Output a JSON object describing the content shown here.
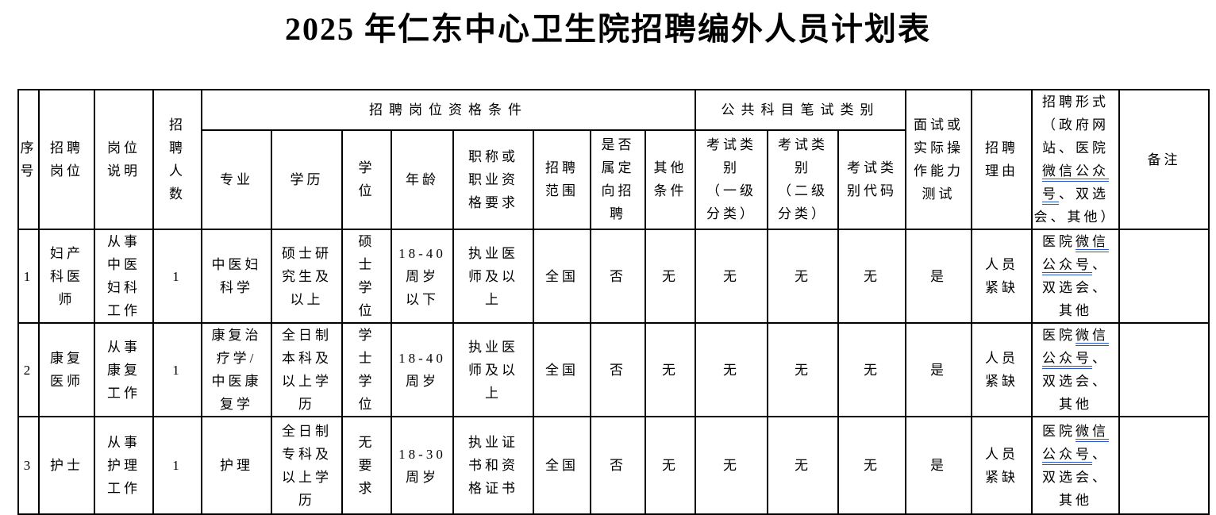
{
  "page": {
    "title": "2025 年仁东中心卫生院招聘编外人员计划表"
  },
  "colors": {
    "underline_blue": "#2456c9",
    "border": "#000000",
    "text": "#000000",
    "background": "#ffffff"
  },
  "table": {
    "groups": {
      "qualification": "招聘岗位资格条件",
      "written_test": "公共科目笔试类别"
    },
    "headers": {
      "seq": "序\n号",
      "position": "招聘\n岗位",
      "desc": "岗位\n说明",
      "count": "招\n聘\n人\n数",
      "major": "专业",
      "education": "学历",
      "degree": "学\n位",
      "age": "年龄",
      "cert": "职称或\n职业资\n格要求",
      "scope": "招聘\n范围",
      "targeted": "是否\n属定\n向招\n聘",
      "other": "其他\n条件",
      "exam_cat1": "考试类\n别\n（一级\n分类）",
      "exam_cat2": "考试类\n别\n（二级\n分类）",
      "exam_code": "考试类\n别代码",
      "interview": "面试或\n实际操\n作能力\n测试",
      "reason": "招聘\n理由",
      "remark": "备注",
      "form_lines": [
        [
          {
            "t": "招聘形式"
          }
        ],
        [
          {
            "t": "（政府网"
          }
        ],
        [
          {
            "t": "站、医院"
          }
        ],
        [
          {
            "t": "微信公众",
            "u": true
          }
        ],
        [
          {
            "t": "号",
            "u": true
          },
          {
            "t": "、双选"
          }
        ],
        [
          {
            "t": "会、其他）"
          }
        ]
      ]
    },
    "rows": [
      {
        "seq": "1",
        "position": "妇产\n科医\n师",
        "desc": "从事\n中医\n妇科\n工作",
        "count": "1",
        "major": "中医妇\n科学",
        "education": "硕士研\n究生及\n以上",
        "degree": "硕\n士\n学\n位",
        "age": "18-40\n周岁\n以下",
        "cert": "执业医\n师及以\n上",
        "scope": "全国",
        "targeted": "否",
        "other": "无",
        "exam_cat1": "无",
        "exam_cat2": "无",
        "exam_code": "无",
        "interview": "是",
        "reason": "人员\n紧缺",
        "form_lines": [
          [
            {
              "t": "医院"
            },
            {
              "t": "微信",
              "u": true
            }
          ],
          [
            {
              "t": "公众号",
              "u": true
            },
            {
              "t": "、"
            }
          ],
          [
            {
              "t": "双选会、"
            }
          ],
          [
            {
              "t": "其他"
            }
          ]
        ],
        "remark": ""
      },
      {
        "seq": "2",
        "position": "康复\n医师",
        "desc": "从事\n康复\n工作",
        "count": "1",
        "major": "康复治\n疗学/\n中医康\n复学",
        "education": "全日制\n本科及\n以上学\n历",
        "degree": "学\n士\n学\n位",
        "age": "18-40\n周岁",
        "cert": "执业医\n师及以\n上",
        "scope": "全国",
        "targeted": "否",
        "other": "无",
        "exam_cat1": "无",
        "exam_cat2": "无",
        "exam_code": "无",
        "interview": "是",
        "reason": "人员\n紧缺",
        "form_lines": [
          [
            {
              "t": "医院"
            },
            {
              "t": "微信",
              "u": true
            }
          ],
          [
            {
              "t": "公众号",
              "u": true
            },
            {
              "t": "、"
            }
          ],
          [
            {
              "t": "双选会、"
            }
          ],
          [
            {
              "t": "其他"
            }
          ]
        ],
        "remark": ""
      },
      {
        "seq": "3",
        "position": "护士",
        "desc": "从事\n护理\n工作",
        "count": "1",
        "major": "护理",
        "education": "全日制\n专科及\n以上学\n历",
        "degree": "无\n要\n求",
        "age": "18-30\n周岁",
        "cert": "执业证\n书和资\n格证书",
        "scope": "全国",
        "targeted": "否",
        "other": "无",
        "exam_cat1": "无",
        "exam_cat2": "无",
        "exam_code": "无",
        "interview": "是",
        "reason": "人员\n紧缺",
        "form_lines": [
          [
            {
              "t": "医院"
            },
            {
              "t": "微信",
              "u": true
            }
          ],
          [
            {
              "t": "公众号",
              "u": true
            },
            {
              "t": "、"
            }
          ],
          [
            {
              "t": "双选会、"
            }
          ],
          [
            {
              "t": "其他"
            }
          ]
        ],
        "remark": ""
      }
    ]
  }
}
